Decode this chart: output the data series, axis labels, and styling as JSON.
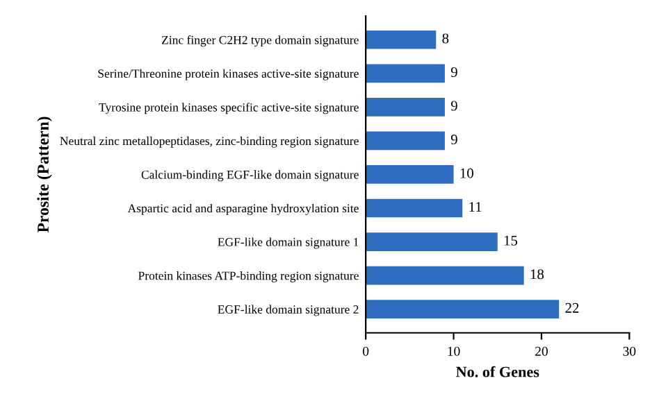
{
  "chart_data": {
    "type": "bar",
    "orientation": "horizontal",
    "xlabel": "No. of Genes",
    "ylabel": "Prosite (Pattern)",
    "categories": [
      "Zinc finger C2H2 type domain signature",
      "Serine/Threonine protein kinases active-site signature",
      "Tyrosine protein kinases specific active-site signature",
      "Neutral zinc metallopeptidases, zinc-binding region signature",
      "Calcium-binding EGF-like domain signature",
      "Aspartic acid and asparagine hydroxylation site",
      "EGF-like domain signature 1",
      "Protein kinases ATP-binding region signature",
      "EGF-like domain signature 2"
    ],
    "values": [
      8,
      9,
      9,
      9,
      10,
      11,
      15,
      18,
      22
    ],
    "color": "#2e6cc0",
    "xlim": [
      0,
      30
    ],
    "xticks": [
      0,
      10,
      20,
      30
    ],
    "data_labels": true,
    "grid": false
  }
}
